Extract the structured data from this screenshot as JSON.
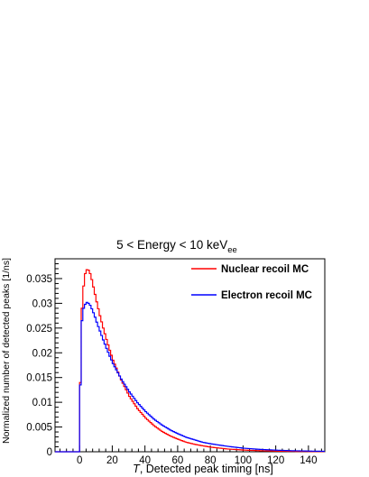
{
  "chart_data": {
    "type": "line",
    "title_main": "5 < Energy < 10 keV",
    "title_sub": "ee",
    "xlabel_var": "T",
    "xlabel_rest": ", Detected peak timing [ns]",
    "ylabel": "Normalized number of detected peaks [1/ns]",
    "xlim": [
      -15,
      150
    ],
    "ylim": [
      0,
      0.039
    ],
    "xticks": [
      0,
      20,
      40,
      60,
      80,
      100,
      120,
      140
    ],
    "yticks": [
      0,
      0.005,
      0.01,
      0.015,
      0.02,
      0.025,
      0.03,
      0.035
    ],
    "ytick_labels": [
      "0",
      "0.005",
      "0.01",
      "0.015",
      "0.02",
      "0.025",
      "0.03",
      "0.035"
    ],
    "grid": false,
    "legend_position": "top-right",
    "series": [
      {
        "name": "Nuclear recoil MC",
        "color": "#ff0000",
        "x": [
          -15,
          -1,
          0,
          1,
          2,
          3,
          4,
          5,
          6,
          7,
          8,
          9,
          10,
          12,
          14,
          16,
          18,
          20,
          25,
          30,
          35,
          40,
          45,
          50,
          55,
          60,
          65,
          70,
          75,
          80,
          90,
          100,
          110,
          120,
          130,
          140,
          150
        ],
        "y": [
          0,
          0,
          0.014,
          0.029,
          0.0335,
          0.036,
          0.0368,
          0.0367,
          0.036,
          0.0348,
          0.0333,
          0.0318,
          0.0303,
          0.0275,
          0.025,
          0.0227,
          0.0205,
          0.0185,
          0.0145,
          0.0112,
          0.0087,
          0.0068,
          0.0053,
          0.0041,
          0.0032,
          0.0025,
          0.0019,
          0.0015,
          0.0012,
          0.00092,
          0.00056,
          0.00034,
          0.00021,
          0.00013,
          8e-05,
          5e-05,
          3e-05
        ]
      },
      {
        "name": "Electron recoil MC",
        "color": "#0000ff",
        "x": [
          -15,
          -1,
          0,
          1,
          2,
          3,
          4,
          5,
          6,
          7,
          8,
          9,
          10,
          12,
          14,
          16,
          18,
          20,
          25,
          30,
          35,
          40,
          45,
          50,
          55,
          60,
          65,
          70,
          75,
          80,
          90,
          100,
          110,
          120,
          130,
          140,
          150
        ],
        "y": [
          0,
          0,
          0.0135,
          0.0265,
          0.029,
          0.0298,
          0.0302,
          0.03,
          0.0296,
          0.0289,
          0.0281,
          0.0272,
          0.0262,
          0.0244,
          0.0226,
          0.0209,
          0.0193,
          0.0178,
          0.0147,
          0.0121,
          0.0099,
          0.0081,
          0.0066,
          0.0054,
          0.0044,
          0.0036,
          0.0029,
          0.0024,
          0.0019,
          0.0016,
          0.0011,
          0.00072,
          0.00048,
          0.00032,
          0.00021,
          0.00014,
          9e-05
        ]
      }
    ]
  }
}
